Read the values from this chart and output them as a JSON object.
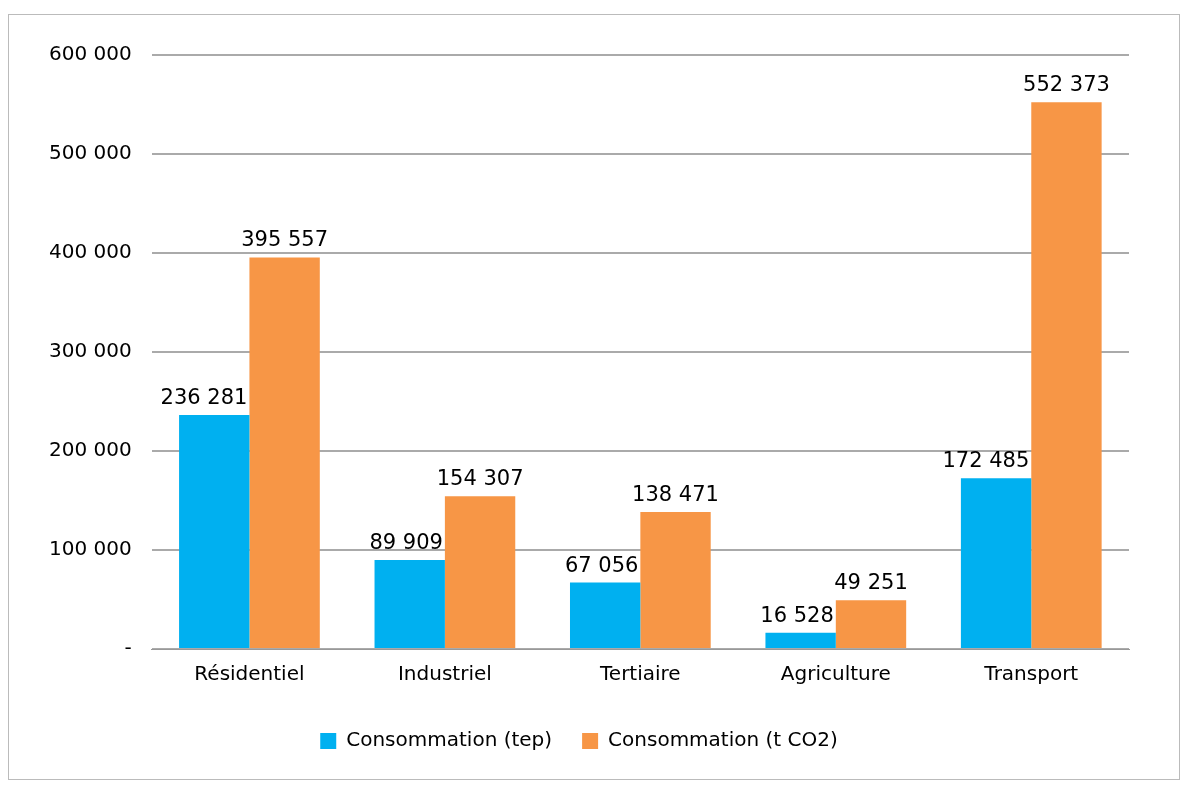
{
  "chart_data": {
    "type": "bar",
    "categories": [
      "Résidentiel",
      "Industriel",
      "Tertiaire",
      "Agriculture",
      "Transport"
    ],
    "series": [
      {
        "name": "Consommation (tep)",
        "color": "#00b0f0",
        "values": [
          236281,
          89909,
          67056,
          16528,
          172485
        ],
        "value_labels": [
          "236 281",
          "89 909",
          "67 056",
          "16 528",
          "172 485"
        ]
      },
      {
        "name": "Consommation (t CO2)",
        "color": "#f79646",
        "values": [
          395557,
          154307,
          138471,
          49251,
          552373
        ],
        "value_labels": [
          "395 557",
          "154 307",
          "138 471",
          "49 251",
          "552 373"
        ]
      }
    ],
    "ylim": [
      0,
      600000
    ],
    "yticks": [
      {
        "value": 0,
        "label": "-"
      },
      {
        "value": 100000,
        "label": "100 000"
      },
      {
        "value": 200000,
        "label": "200 000"
      },
      {
        "value": 300000,
        "label": "300 000"
      },
      {
        "value": 400000,
        "label": "400 000"
      },
      {
        "value": 500000,
        "label": "500 000"
      },
      {
        "value": 600000,
        "label": "600 000"
      }
    ],
    "grid": "y",
    "legend": "bottom"
  }
}
